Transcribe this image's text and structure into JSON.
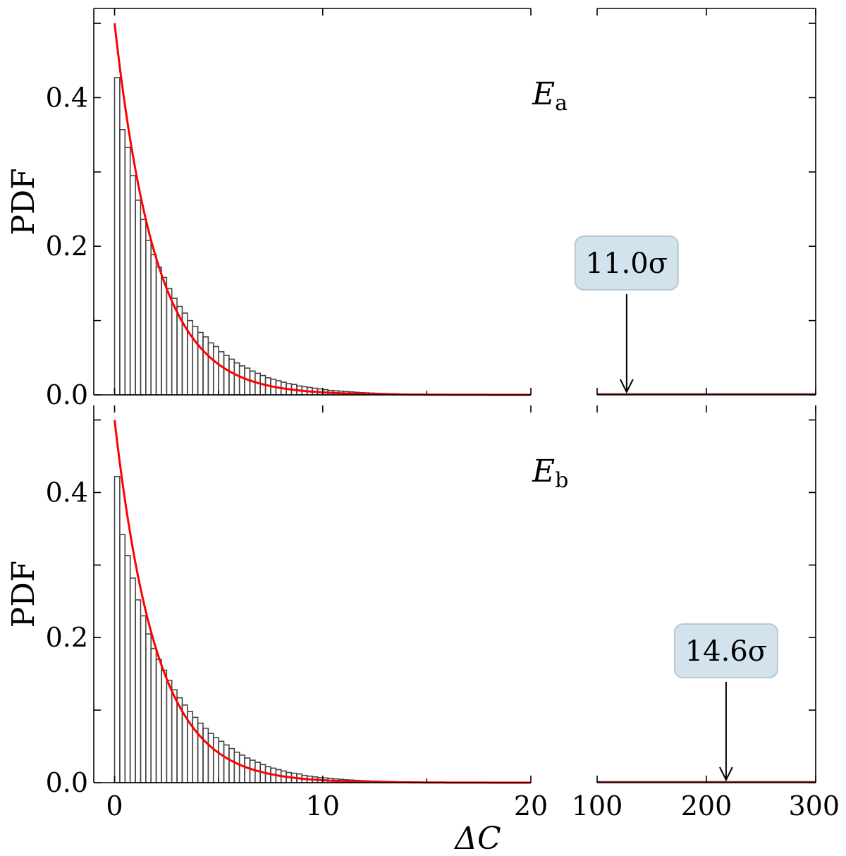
{
  "chart_data": {
    "type": "bar",
    "shared_xlabel": "ΔC",
    "panels": [
      {
        "label": "E",
        "label_subscript": "a",
        "ylabel": "PDF",
        "ylim": [
          0,
          0.52
        ],
        "yticks": [
          0.0,
          0.2,
          0.4
        ],
        "ytick_labels": [
          "0.0",
          "0.2",
          "0.4"
        ],
        "histogram": {
          "bin_width": 0.25,
          "x_start": 0,
          "values": [
            0.427,
            0.357,
            0.333,
            0.295,
            0.262,
            0.236,
            0.208,
            0.189,
            0.172,
            0.158,
            0.143,
            0.13,
            0.119,
            0.11,
            0.1,
            0.092,
            0.084,
            0.078,
            0.07,
            0.065,
            0.058,
            0.053,
            0.048,
            0.043,
            0.039,
            0.036,
            0.032,
            0.029,
            0.026,
            0.023,
            0.021,
            0.019,
            0.017,
            0.015,
            0.014,
            0.012,
            0.011,
            0.01,
            0.009,
            0.008,
            0.007,
            0.006,
            0.0055,
            0.005,
            0.0045,
            0.004,
            0.0035,
            0.003,
            0.0027,
            0.0024,
            0.0021,
            0.0019,
            0.0017,
            0.0015,
            0.0013,
            0.0011,
            0.001,
            0.0009,
            0.0008,
            0.0007,
            0.0006,
            0.0005,
            0.0004,
            0.0003,
            0.0003,
            0.0002,
            0.0002,
            0.0002,
            0.0001,
            0.0001,
            0.0001,
            0.0001
          ]
        },
        "fit_curve": {
          "function": "0.5*exp(-x/2)",
          "color": "#ff0000"
        },
        "annotation": {
          "text": "11.0σ",
          "x": 127,
          "box_color": "#d3e3ee"
        }
      },
      {
        "label": "E",
        "label_subscript": "b",
        "ylabel": "PDF",
        "ylim": [
          0,
          0.52
        ],
        "yticks": [
          0.0,
          0.2,
          0.4
        ],
        "ytick_labels": [
          "0.0",
          "0.2",
          "0.4"
        ],
        "histogram": {
          "bin_width": 0.25,
          "x_start": 0,
          "values": [
            0.422,
            0.342,
            0.313,
            0.282,
            0.252,
            0.23,
            0.205,
            0.185,
            0.17,
            0.155,
            0.141,
            0.128,
            0.117,
            0.107,
            0.098,
            0.09,
            0.082,
            0.075,
            0.068,
            0.062,
            0.057,
            0.052,
            0.047,
            0.042,
            0.038,
            0.034,
            0.031,
            0.028,
            0.025,
            0.022,
            0.02,
            0.018,
            0.016,
            0.014,
            0.013,
            0.012,
            0.01,
            0.009,
            0.008,
            0.007,
            0.0065,
            0.006,
            0.0052,
            0.0046,
            0.004,
            0.0036,
            0.0032,
            0.0028,
            0.0025,
            0.0022,
            0.002,
            0.0018,
            0.0016,
            0.0014,
            0.0012,
            0.0011,
            0.001,
            0.0009,
            0.0008,
            0.0007,
            0.0006,
            0.0005,
            0.0004,
            0.0004,
            0.0003,
            0.0003,
            0.0002,
            0.0002,
            0.0001,
            0.0001,
            0.0001,
            0.0001
          ]
        },
        "fit_curve": {
          "function": "0.5*exp(-x/2)",
          "color": "#ff0000"
        },
        "annotation": {
          "text": "14.6σ",
          "x": 218,
          "box_color": "#d3e3ee"
        }
      }
    ],
    "x_axis_left": {
      "xlim": [
        -1,
        20
      ],
      "ticks": [
        0,
        10,
        20
      ],
      "tick_labels": [
        "0",
        "10",
        "20"
      ]
    },
    "x_axis_right": {
      "xlim": [
        100,
        300
      ],
      "ticks": [
        100,
        200,
        300
      ],
      "tick_labels": [
        "100",
        "200",
        "300"
      ]
    },
    "broken_axis": true,
    "grid": false,
    "colors": {
      "histogram_edge": "#444444",
      "fit": "#ff0000",
      "annotation_box": "#d3e3ee",
      "annotation_border": "#b9c7d2"
    }
  }
}
